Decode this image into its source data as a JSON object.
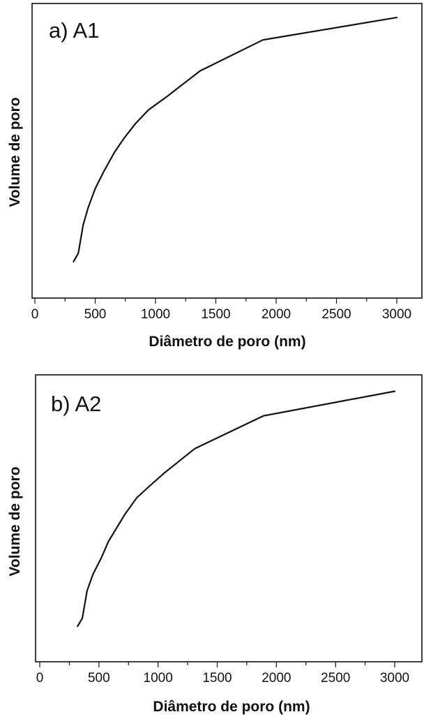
{
  "chart_data": [
    {
      "type": "line",
      "title": "a) A1",
      "xlabel": "Diâmetro de poro (nm)",
      "ylabel": "Volume de poro",
      "xlim": [
        0,
        3250
      ],
      "ylim": [
        0,
        1.05
      ],
      "xticks": [
        0,
        500,
        1000,
        1500,
        2000,
        2500,
        3000
      ],
      "xtick_labels": [
        "0",
        "500",
        "1000",
        "1500",
        "2000",
        "2500",
        "3000"
      ],
      "y_tick_labels_shown": false,
      "grid": false,
      "series": [
        {
          "x": [
            320,
            360,
            400,
            440,
            500,
            570,
            660,
            740,
            830,
            940,
            1100,
            1370,
            1890,
            3000
          ],
          "y": [
            0.13,
            0.16,
            0.26,
            0.32,
            0.39,
            0.45,
            0.52,
            0.57,
            0.62,
            0.67,
            0.72,
            0.81,
            0.92,
            1.0
          ]
        }
      ]
    },
    {
      "type": "line",
      "title": "b) A2",
      "xlabel": "Diâmetro de poro (nm)",
      "ylabel": "Volume de poro",
      "xlim": [
        0,
        3250
      ],
      "ylim": [
        0,
        1.05
      ],
      "xticks": [
        0,
        500,
        1000,
        1500,
        2000,
        2500,
        3000
      ],
      "xtick_labels": [
        "0",
        "500",
        "1000",
        "1500",
        "2000",
        "2500",
        "3000"
      ],
      "y_tick_labels_shown": false,
      "grid": false,
      "series": [
        {
          "x": [
            320,
            360,
            400,
            450,
            520,
            580,
            650,
            720,
            820,
            920,
            1050,
            1310,
            1890,
            3000
          ],
          "y": [
            0.13,
            0.16,
            0.26,
            0.32,
            0.38,
            0.44,
            0.49,
            0.54,
            0.6,
            0.64,
            0.69,
            0.78,
            0.9,
            0.99
          ]
        }
      ]
    }
  ]
}
